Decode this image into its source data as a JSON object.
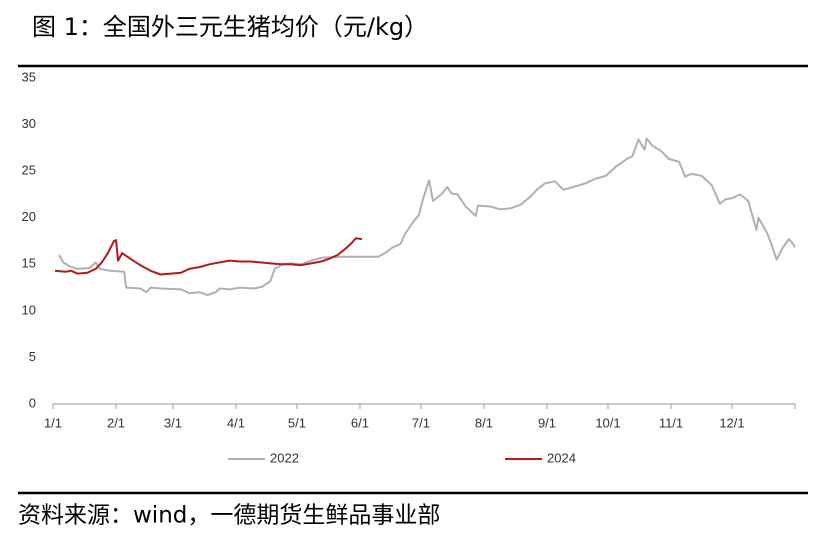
{
  "chart_data": {
    "type": "line",
    "title": "图 1：全国外三元生猪均价（元/kg）",
    "source": "资料来源：wind，一德期货生鲜品事业部",
    "xlim": [
      1,
      366
    ],
    "xticks": [
      {
        "value": 1,
        "label": "1/1"
      },
      {
        "value": 32,
        "label": "2/1"
      },
      {
        "value": 60,
        "label": "3/1"
      },
      {
        "value": 91,
        "label": "4/1"
      },
      {
        "value": 121,
        "label": "5/1"
      },
      {
        "value": 152,
        "label": "6/1"
      },
      {
        "value": 182,
        "label": "7/1"
      },
      {
        "value": 213,
        "label": "8/1"
      },
      {
        "value": 244,
        "label": "9/1"
      },
      {
        "value": 274,
        "label": "10/1"
      },
      {
        "value": 305,
        "label": "11/1"
      },
      {
        "value": 335,
        "label": "12/1"
      }
    ],
    "ylim": [
      0,
      35
    ],
    "yticks": [
      0,
      5,
      10,
      15,
      20,
      25,
      30,
      35
    ],
    "grid": false,
    "legend": "bottom",
    "series": [
      {
        "name": "2022",
        "color": "#b0b0b0",
        "x": [
          4,
          6,
          9,
          13,
          19,
          22,
          24,
          29,
          36,
          37,
          44,
          47,
          49,
          54,
          64,
          68,
          73,
          77,
          81,
          83,
          88,
          93,
          100,
          104,
          108,
          110,
          114,
          118,
          123,
          128,
          133,
          142,
          152,
          161,
          165,
          168,
          172,
          174,
          178,
          181,
          183,
          186,
          188,
          192,
          195,
          197,
          200,
          204,
          209,
          210,
          216,
          221,
          226,
          231,
          236,
          239,
          243,
          248,
          252,
          257,
          263,
          268,
          273,
          278,
          284,
          286,
          289,
          292,
          293,
          296,
          300,
          304,
          309,
          312,
          315,
          320,
          325,
          329,
          332,
          335,
          339,
          343,
          347,
          348,
          352,
          354,
          357,
          360,
          363,
          365,
          366
        ],
        "values": [
          16.0,
          15.2,
          14.8,
          14.5,
          14.6,
          15.2,
          14.5,
          14.3,
          14.2,
          12.5,
          12.4,
          12.0,
          12.5,
          12.4,
          12.3,
          11.9,
          12.0,
          11.7,
          12.0,
          12.4,
          12.3,
          12.5,
          12.4,
          12.6,
          13.2,
          14.5,
          15.0,
          15.1,
          15.0,
          15.4,
          15.7,
          15.8,
          15.8,
          15.8,
          16.3,
          16.8,
          17.2,
          18.2,
          19.5,
          20.3,
          22.0,
          24.0,
          21.8,
          22.5,
          23.3,
          22.6,
          22.5,
          21.2,
          20.2,
          21.3,
          21.2,
          20.9,
          21.0,
          21.4,
          22.3,
          23.0,
          23.7,
          23.9,
          23.0,
          23.3,
          23.7,
          24.2,
          24.5,
          25.5,
          26.4,
          26.6,
          28.4,
          27.3,
          28.5,
          27.7,
          27.2,
          26.3,
          26.0,
          24.4,
          24.7,
          24.5,
          23.5,
          21.5,
          22.0,
          22.1,
          22.5,
          21.8,
          18.7,
          20.0,
          18.5,
          17.4,
          15.5,
          16.8,
          17.7,
          17.2,
          16.8
        ]
      },
      {
        "name": "2024",
        "color": "#b01c1c",
        "x": [
          2,
          7,
          10,
          13,
          18,
          22,
          25,
          28,
          31,
          32,
          33,
          35,
          39,
          44,
          49,
          54,
          59,
          64,
          68,
          73,
          78,
          83,
          88,
          93,
          98,
          103,
          108,
          113,
          118,
          123,
          128,
          133,
          137,
          141,
          145,
          148,
          150,
          153
        ],
        "values": [
          14.3,
          14.2,
          14.3,
          14.0,
          14.1,
          14.5,
          15.2,
          16.2,
          17.5,
          17.6,
          15.4,
          16.2,
          15.6,
          14.9,
          14.3,
          13.9,
          14.0,
          14.1,
          14.5,
          14.7,
          15.0,
          15.2,
          15.4,
          15.3,
          15.3,
          15.2,
          15.1,
          15.0,
          15.0,
          14.9,
          15.1,
          15.3,
          15.6,
          16.0,
          16.7,
          17.3,
          17.8,
          17.7
        ]
      }
    ]
  }
}
